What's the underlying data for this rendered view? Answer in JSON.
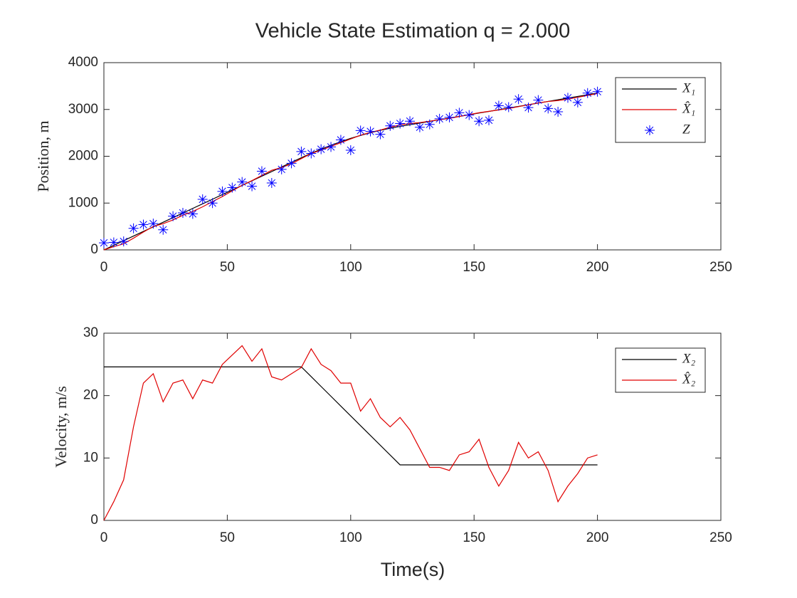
{
  "chart_data": [
    {
      "type": "line",
      "title": "Vehicle State Estimation q = 2.000",
      "ylabel": "Position, m",
      "x": [
        0,
        4,
        8,
        12,
        16,
        20,
        24,
        28,
        32,
        36,
        40,
        44,
        48,
        52,
        56,
        60,
        64,
        68,
        72,
        76,
        80,
        84,
        88,
        92,
        96,
        100,
        104,
        108,
        112,
        116,
        120,
        124,
        128,
        132,
        136,
        140,
        144,
        148,
        152,
        156,
        160,
        164,
        168,
        172,
        176,
        180,
        184,
        188,
        192,
        196,
        200
      ],
      "series": [
        {
          "name": "X₁",
          "color": "#000000",
          "mode": "lines",
          "values": [
            0,
            98,
            197,
            295,
            394,
            492,
            590,
            689,
            787,
            886,
            984,
            1082,
            1181,
            1279,
            1378,
            1476,
            1574,
            1673,
            1771,
            1870,
            1968,
            2063,
            2152,
            2235,
            2311,
            2382,
            2445,
            2503,
            2554,
            2599,
            2638,
            2674,
            2709,
            2745,
            2780,
            2816,
            2852,
            2887,
            2923,
            2958,
            2994,
            3030,
            3065,
            3101,
            3136,
            3172,
            3208,
            3243,
            3279,
            3314,
            3350
          ]
        },
        {
          "name": "X̂₁",
          "color": "#e00000",
          "mode": "lines",
          "values": [
            0,
            70,
            130,
            250,
            380,
            500,
            560,
            640,
            740,
            820,
            920,
            1030,
            1140,
            1260,
            1380,
            1480,
            1590,
            1700,
            1760,
            1840,
            1950,
            2060,
            2130,
            2210,
            2290,
            2370,
            2450,
            2510,
            2560,
            2620,
            2670,
            2700,
            2720,
            2750,
            2780,
            2810,
            2850,
            2890,
            2930,
            2960,
            2990,
            3020,
            3060,
            3100,
            3140,
            3170,
            3190,
            3220,
            3260,
            3300,
            3340
          ]
        },
        {
          "name": "Z",
          "color": "#0000ff",
          "mode": "markers",
          "values": [
            150,
            160,
            180,
            460,
            540,
            560,
            430,
            720,
            790,
            770,
            1080,
            1000,
            1250,
            1330,
            1450,
            1360,
            1680,
            1430,
            1720,
            1850,
            2100,
            2060,
            2150,
            2200,
            2350,
            2130,
            2550,
            2530,
            2470,
            2650,
            2700,
            2750,
            2620,
            2680,
            2800,
            2830,
            2930,
            2880,
            2750,
            2770,
            3080,
            3050,
            3220,
            3040,
            3200,
            3020,
            2950,
            3250,
            3150,
            3350,
            3380
          ]
        }
      ],
      "xlim": [
        0,
        250
      ],
      "xticks": [
        0,
        50,
        100,
        150,
        200,
        250
      ],
      "ylim": [
        0,
        4000
      ],
      "yticks": [
        0,
        1000,
        2000,
        3000,
        4000
      ],
      "legend": "upper right"
    },
    {
      "type": "line",
      "ylabel": "Velocity, m/s",
      "xlabel": "Time(s)",
      "x": [
        0,
        4,
        8,
        12,
        16,
        20,
        24,
        28,
        32,
        36,
        40,
        44,
        48,
        52,
        56,
        60,
        64,
        68,
        72,
        76,
        80,
        84,
        88,
        92,
        96,
        100,
        104,
        108,
        112,
        116,
        120,
        124,
        128,
        132,
        136,
        140,
        144,
        148,
        152,
        156,
        160,
        164,
        168,
        172,
        176,
        180,
        184,
        188,
        192,
        196,
        200
      ],
      "series": [
        {
          "name": "X₂",
          "color": "#000000",
          "mode": "lines",
          "values": [
            24.6,
            24.6,
            24.6,
            24.6,
            24.6,
            24.6,
            24.6,
            24.6,
            24.6,
            24.6,
            24.6,
            24.6,
            24.6,
            24.6,
            24.6,
            24.6,
            24.6,
            24.6,
            24.6,
            24.6,
            24.6,
            23.03,
            21.46,
            19.89,
            18.32,
            16.75,
            15.18,
            13.61,
            12.04,
            10.47,
            8.9,
            8.9,
            8.9,
            8.9,
            8.9,
            8.9,
            8.9,
            8.9,
            8.9,
            8.9,
            8.9,
            8.9,
            8.9,
            8.9,
            8.9,
            8.9,
            8.9,
            8.9,
            8.9,
            8.9,
            8.9
          ]
        },
        {
          "name": "X̂₂",
          "color": "#e00000",
          "mode": "lines",
          "values": [
            0,
            3,
            6.5,
            15,
            22,
            23.5,
            19,
            22,
            22.5,
            19.5,
            22.5,
            22,
            25,
            26.5,
            28,
            25.5,
            27.5,
            23,
            22.5,
            23.5,
            24.5,
            27.5,
            25,
            24,
            22,
            22,
            17.5,
            19.5,
            16.5,
            15,
            16.5,
            14.5,
            11.5,
            8.5,
            8.5,
            8,
            10.5,
            11,
            13,
            8.5,
            5.5,
            8,
            12.5,
            10,
            11,
            8,
            3,
            5.5,
            7.5,
            10,
            10.5
          ]
        }
      ],
      "xlim": [
        0,
        250
      ],
      "xticks": [
        0,
        50,
        100,
        150,
        200,
        250
      ],
      "ylim": [
        0,
        30
      ],
      "yticks": [
        0,
        10,
        20,
        30
      ],
      "legend": "upper right"
    }
  ]
}
